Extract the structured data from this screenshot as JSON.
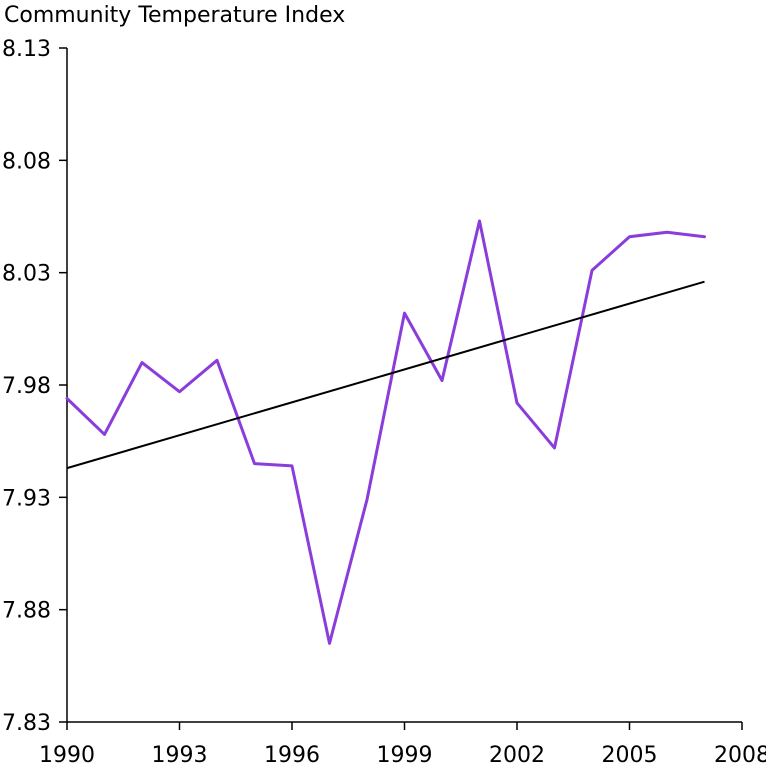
{
  "chart_data": {
    "type": "line",
    "title": "Community Temperature Index",
    "xlabel": "",
    "ylabel": "",
    "xlim": [
      1990,
      2008
    ],
    "ylim": [
      7.83,
      8.13
    ],
    "x_ticks": [
      "1990",
      "1993",
      "1996",
      "1999",
      "2002",
      "2005",
      "2008"
    ],
    "y_ticks": [
      "8.13",
      "8.08",
      "8.03",
      "7.98",
      "7.93",
      "7.88",
      "7.83"
    ],
    "grid": false,
    "legend": "none",
    "x": [
      1990,
      1991,
      1992,
      1993,
      1994,
      1995,
      1996,
      1997,
      1998,
      1999,
      2000,
      2001,
      2002,
      2003,
      2004,
      2005,
      2006,
      2007
    ],
    "series": [
      {
        "color": "#8a3ddb",
        "values": [
          7.974,
          7.958,
          7.99,
          7.977,
          7.991,
          7.945,
          7.944,
          7.865,
          7.929,
          8.012,
          7.982,
          8.053,
          7.972,
          7.952,
          8.031,
          8.046,
          8.048,
          8.046
        ]
      },
      {
        "type": "trend",
        "color": "#000000",
        "x": [
          1990,
          2007
        ],
        "values": [
          7.943,
          8.026
        ]
      }
    ]
  }
}
